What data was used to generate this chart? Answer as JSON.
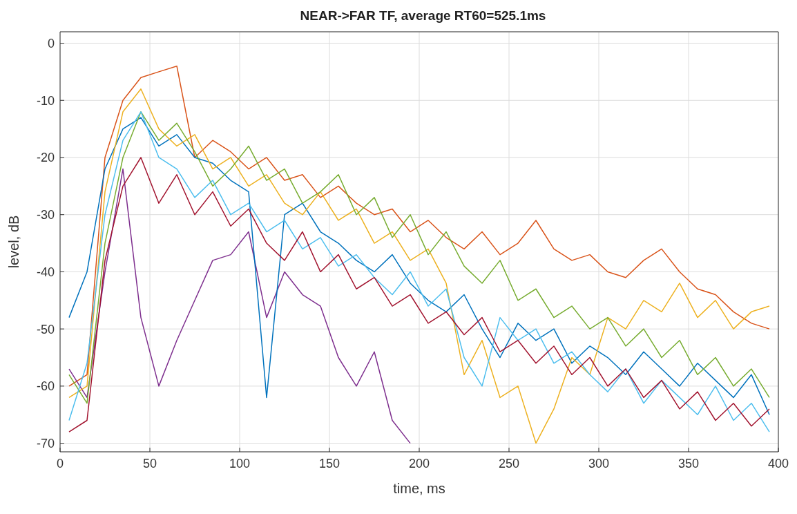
{
  "chart_data": {
    "type": "line",
    "title": "NEAR->FAR TF, average RT60=525.1ms",
    "xlabel": "time, ms",
    "ylabel": "level, dB",
    "x": [
      5,
      15,
      25,
      35,
      45,
      55,
      65,
      75,
      85,
      95,
      105,
      115,
      125,
      135,
      145,
      155,
      165,
      175,
      185,
      195,
      205,
      215,
      225,
      235,
      245,
      255,
      265,
      275,
      285,
      295,
      305,
      315,
      325,
      335,
      345,
      355,
      365,
      375,
      385,
      395
    ],
    "series": [
      {
        "color": "#d95319",
        "values": [
          -60,
          -58,
          -20,
          -10,
          -6,
          -5,
          -4,
          -20,
          -17,
          -19,
          -22,
          -20,
          -24,
          -23,
          -27,
          -25,
          -28,
          -30,
          -29,
          -33,
          -31,
          -34,
          -36,
          -33,
          -37,
          -35,
          -31,
          -36,
          -38,
          -37,
          -40,
          -41,
          -38,
          -36,
          -40,
          -43,
          -44,
          -47,
          -49,
          -50
        ]
      },
      {
        "color": "#7e2f8e",
        "values": [
          -57,
          -62,
          -40,
          -22,
          -48,
          -60,
          -52,
          -45,
          -38,
          -37,
          -33,
          -48,
          -40,
          -44,
          -46,
          -55,
          -60,
          -54,
          -66,
          -70,
          null,
          null,
          null,
          null,
          null,
          null,
          null,
          null,
          null,
          null,
          null,
          null,
          null,
          null,
          null,
          null,
          null,
          null,
          null,
          null
        ]
      },
      {
        "color": "#0072bd",
        "values": [
          -48,
          -40,
          -22,
          -15,
          -13,
          -18,
          -16,
          -20,
          -21,
          -24,
          -26,
          -62,
          -30,
          -28,
          -33,
          -35,
          -38,
          -40,
          -37,
          -42,
          -45,
          -47,
          -44,
          -50,
          -55,
          -49,
          -52,
          -50,
          -56,
          -53,
          -55,
          -58,
          -54,
          -57,
          -60,
          -56,
          -59,
          -62,
          -58,
          -65
        ]
      },
      {
        "color": "#edb120",
        "values": [
          -62,
          -60,
          -26,
          -12,
          -8,
          -15,
          -18,
          -16,
          -22,
          -20,
          -25,
          -23,
          -28,
          -30,
          -26,
          -31,
          -29,
          -35,
          -33,
          -38,
          -36,
          -42,
          -58,
          -52,
          -62,
          -60,
          -70,
          -64,
          -55,
          -58,
          -48,
          -50,
          -45,
          -47,
          -42,
          -48,
          -45,
          -50,
          -47,
          -46
        ]
      },
      {
        "color": "#77ac30",
        "values": [
          -58,
          -63,
          -35,
          -20,
          -12,
          -17,
          -14,
          -19,
          -25,
          -22,
          -18,
          -24,
          -22,
          -28,
          -26,
          -23,
          -30,
          -27,
          -34,
          -30,
          -37,
          -33,
          -39,
          -42,
          -38,
          -45,
          -43,
          -48,
          -46,
          -50,
          -48,
          -53,
          -50,
          -55,
          -52,
          -58,
          -55,
          -60,
          -57,
          -62
        ]
      },
      {
        "color": "#4dbeee",
        "values": [
          -66,
          -56,
          -30,
          -17,
          -12,
          -20,
          -22,
          -27,
          -24,
          -30,
          -28,
          -33,
          -31,
          -36,
          -34,
          -39,
          -37,
          -41,
          -44,
          -40,
          -46,
          -43,
          -55,
          -60,
          -48,
          -52,
          -50,
          -56,
          -54,
          -58,
          -61,
          -57,
          -63,
          -59,
          -62,
          -65,
          -60,
          -66,
          -63,
          -68
        ]
      },
      {
        "color": "#a2142f",
        "values": [
          -68,
          -66,
          -38,
          -25,
          -20,
          -28,
          -23,
          -30,
          -26,
          -32,
          -29,
          -35,
          -38,
          -33,
          -40,
          -37,
          -43,
          -41,
          -46,
          -44,
          -49,
          -47,
          -51,
          -48,
          -54,
          -52,
          -56,
          -53,
          -58,
          -55,
          -60,
          -57,
          -62,
          -59,
          -64,
          -61,
          -66,
          -63,
          -67,
          -64
        ]
      }
    ],
    "xlim": [
      0,
      400
    ],
    "xticks": [
      0,
      50,
      100,
      150,
      200,
      250,
      300,
      350,
      400
    ],
    "ylim": [
      -71.5,
      2
    ],
    "yticks": [
      -70,
      -60,
      -50,
      -40,
      -30,
      -20,
      -10,
      0
    ],
    "grid": true,
    "legend": false,
    "marker": "none",
    "line_style": "solid"
  }
}
